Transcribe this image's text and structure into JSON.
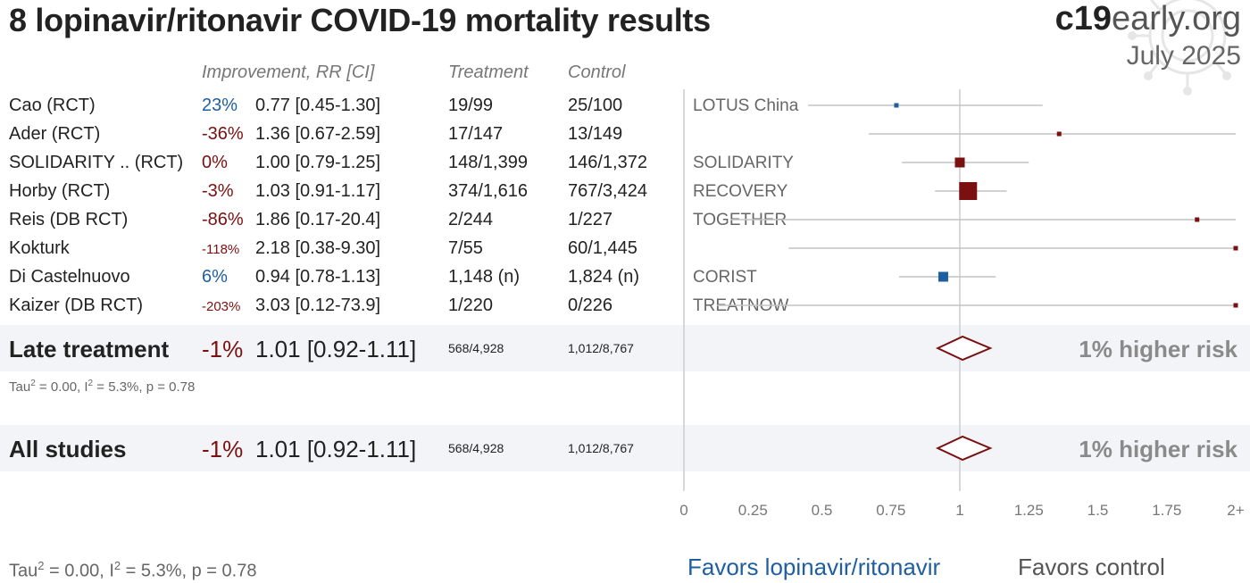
{
  "title": "8 lopinavir/ritonavir COVID-19 mortality results",
  "brand": {
    "bold": "c19",
    "light": "early.org",
    "date": "July 2025"
  },
  "headers": {
    "improvement": "Improvement, RR [CI]",
    "treatment": "Treatment",
    "control": "Control"
  },
  "colors": {
    "benefit": "#1f5fa0",
    "harm": "#7a1010",
    "axis": "#bbbbbb",
    "band": "#f3f4f7"
  },
  "studies": [
    {
      "name": "Cao (RCT)",
      "improvement": "23%",
      "rr_text": "0.77 [0.45-1.30]",
      "treatment": "19/99",
      "control": "25/100",
      "trial": "LOTUS China"
    },
    {
      "name": "Ader (RCT)",
      "improvement": "-36%",
      "rr_text": "1.36 [0.67-2.59]",
      "treatment": "17/147",
      "control": "13/149",
      "trial": ""
    },
    {
      "name": "SOLIDARITY .. (RCT)",
      "improvement": "0%",
      "rr_text": "1.00 [0.79-1.25]",
      "treatment": "148/1,399",
      "control": "146/1,372",
      "trial": "SOLIDARITY"
    },
    {
      "name": "Horby (RCT)",
      "improvement": "-3%",
      "rr_text": "1.03 [0.91-1.17]",
      "treatment": "374/1,616",
      "control": "767/3,424",
      "trial": "RECOVERY"
    },
    {
      "name": "Reis (DB RCT)",
      "improvement": "-86%",
      "rr_text": "1.86 [0.17-20.4]",
      "treatment": "2/244",
      "control": "1/227",
      "trial": "TOGETHER"
    },
    {
      "name": "Kokturk",
      "improvement": "-118%",
      "rr_text": "2.18 [0.38-9.30]",
      "treatment": "7/55",
      "control": "60/1,445",
      "trial": ""
    },
    {
      "name": "Di Castelnuovo",
      "improvement": "6%",
      "rr_text": "0.94 [0.78-1.13]",
      "treatment": "1,148 (n)",
      "control": "1,824 (n)",
      "trial": "CORIST"
    },
    {
      "name": "Kaizer (DB RCT)",
      "improvement": "-203%",
      "rr_text": "3.03 [0.12-73.9]",
      "treatment": "1/220",
      "control": "0/226",
      "trial": "TREATNOW"
    }
  ],
  "late_summary": {
    "label": "Late treatment",
    "improvement": "-1%",
    "rr_text": "1.01 [0.92-1.11]",
    "treatment": "568/4,928",
    "control": "1,012/8,767",
    "risk": "1% higher risk",
    "heterogeneity": {
      "tau_label": "Tau",
      "tau_rest": " = 0.00, I",
      "i_rest": " = 5.3%, p = 0.78",
      "sup": "2"
    }
  },
  "all_summary": {
    "label": "All studies",
    "improvement": "-1%",
    "rr_text": "1.01 [0.92-1.11]",
    "treatment": "568/4,928",
    "control": "1,012/8,767",
    "risk": "1% higher risk"
  },
  "footer_heterogeneity": {
    "tau_label": "Tau",
    "tau_rest": " = 0.00, I",
    "i_rest": " = 5.3%, p = 0.78",
    "sup": "2"
  },
  "favors": {
    "treatment": "Favors lopinavir/ritonavir",
    "control": "Favors control"
  },
  "chart_data": {
    "type": "forest",
    "x_axis": {
      "min": 0,
      "max": 2,
      "ticks": [
        0,
        0.25,
        0.5,
        0.75,
        1,
        1.25,
        1.5,
        1.75,
        2
      ],
      "tick_labels": [
        "0",
        "0.25",
        "0.5",
        "0.75",
        "1",
        "1.25",
        "1.5",
        "1.75",
        "2+"
      ],
      "null_line": 1
    },
    "points": [
      {
        "rr": 0.77,
        "lo": 0.45,
        "hi": 1.3,
        "weight": 1
      },
      {
        "rr": 1.36,
        "lo": 0.67,
        "hi": 2.59,
        "weight": 1
      },
      {
        "rr": 1.0,
        "lo": 0.79,
        "hi": 1.25,
        "weight": 3
      },
      {
        "rr": 1.03,
        "lo": 0.91,
        "hi": 1.17,
        "weight": 6
      },
      {
        "rr": 1.86,
        "lo": 0.17,
        "hi": 20.4,
        "weight": 1
      },
      {
        "rr": 2.18,
        "lo": 0.38,
        "hi": 9.3,
        "weight": 1
      },
      {
        "rr": 0.94,
        "lo": 0.78,
        "hi": 1.13,
        "weight": 3
      },
      {
        "rr": 3.03,
        "lo": 0.12,
        "hi": 73.9,
        "weight": 1
      }
    ],
    "summaries": [
      {
        "label": "Late treatment",
        "rr": 1.01,
        "lo": 0.92,
        "hi": 1.11
      },
      {
        "label": "All studies",
        "rr": 1.01,
        "lo": 0.92,
        "hi": 1.11
      }
    ]
  }
}
